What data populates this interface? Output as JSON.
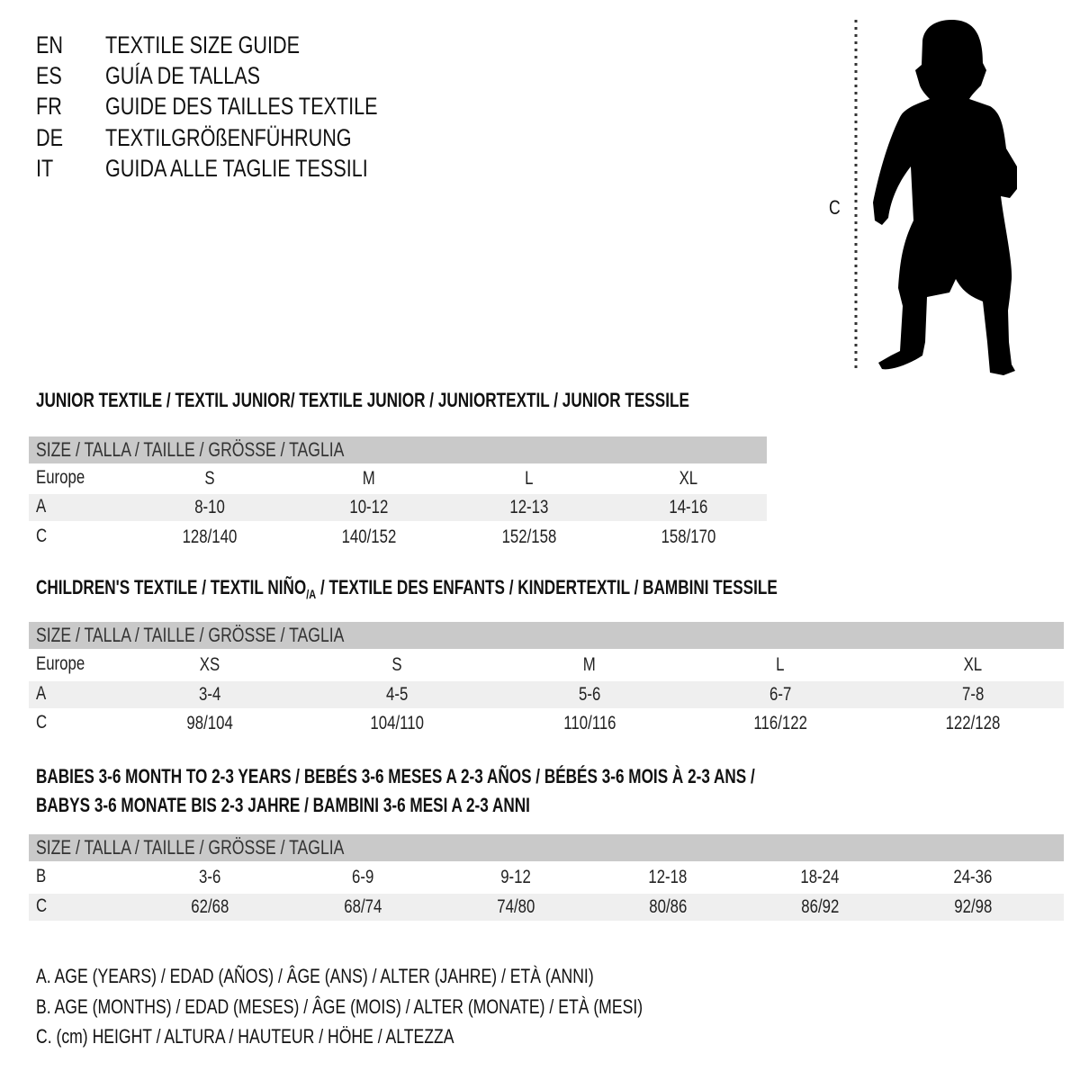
{
  "languages": [
    {
      "code": "EN",
      "text": "TEXTILE SIZE GUIDE"
    },
    {
      "code": "ES",
      "text": "GUÍA DE TALLAS"
    },
    {
      "code": "FR",
      "text": "GUIDE DES TAILLES TEXTILE"
    },
    {
      "code": "DE",
      "text": "TEXTILGRÖßENFÜHRUNG"
    },
    {
      "code": "IT",
      "text": "GUIDA ALLE TAGLIE TESSILI"
    }
  ],
  "figure": {
    "measure_label": "C",
    "icon": "child-silhouette-icon"
  },
  "size_header": "SIZE / TALLA / TAILLE / GRÖSSE / TAGLIA",
  "tables": [
    {
      "title": "JUNIOR TEXTILE / TEXTIL JUNIOR/ TEXTILE JUNIOR / JUNIORTEXTIL / JUNIOR TESSILE",
      "rows": [
        {
          "label": "Europe",
          "values": [
            "S",
            "M",
            "L",
            "XL"
          ]
        },
        {
          "label": "A",
          "values": [
            "8-10",
            "10-12",
            "12-13",
            "14-16"
          ]
        },
        {
          "label": "C",
          "values": [
            "128/140",
            "140/152",
            "152/158",
            "158/170"
          ]
        }
      ]
    },
    {
      "title": "CHILDREN'S TEXTILE / TEXTIL NIÑO",
      "title_sub": "/A",
      "title_rest": " / TEXTILE DES ENFANTS / KINDERTEXTIL / BAMBINI TESSILE",
      "rows": [
        {
          "label": "Europe",
          "values": [
            "XS",
            "S",
            "M",
            "L",
            "XL"
          ]
        },
        {
          "label": "A",
          "values": [
            "3-4",
            "4-5",
            "5-6",
            "6-7",
            "7-8"
          ]
        },
        {
          "label": "C",
          "values": [
            "98/104",
            "104/110",
            "110/116",
            "116/122",
            "122/128"
          ]
        }
      ]
    },
    {
      "title": "BABIES 3-6 MONTH TO 2-3 YEARS / BEBÉS 3-6 MESES A 2-3 AÑOS / BÉBÉS 3-6 MOIS À 2-3 ANS /",
      "title_line2": "BABYS 3-6 MONATE BIS 2-3 JAHRE / BAMBINI 3-6 MESI A 2-3 ANNI",
      "rows": [
        {
          "label": "B",
          "values": [
            "3-6",
            "6-9",
            "9-12",
            "12-18",
            "18-24",
            "24-36"
          ]
        },
        {
          "label": "C",
          "values": [
            "62/68",
            "68/74",
            "74/80",
            "80/86",
            "86/92",
            "92/98"
          ]
        }
      ]
    }
  ],
  "legend": [
    "A. AGE (YEARS) / EDAD (AÑOS) / ÂGE (ANS) / ALTER (JAHRE) / ETÀ (ANNI)",
    "B. AGE (MONTHS) / EDAD (MESES) / ÂGE (MOIS) / ALTER (MONATE) / ETÀ (MESI)",
    "C. (cm) HEIGHT / ALTURA / HAUTEUR / HÖHE / ALTEZZA"
  ],
  "colors": {
    "header_band": "#c9c9c9",
    "alt_row": "#efefef",
    "text": "#111111"
  }
}
